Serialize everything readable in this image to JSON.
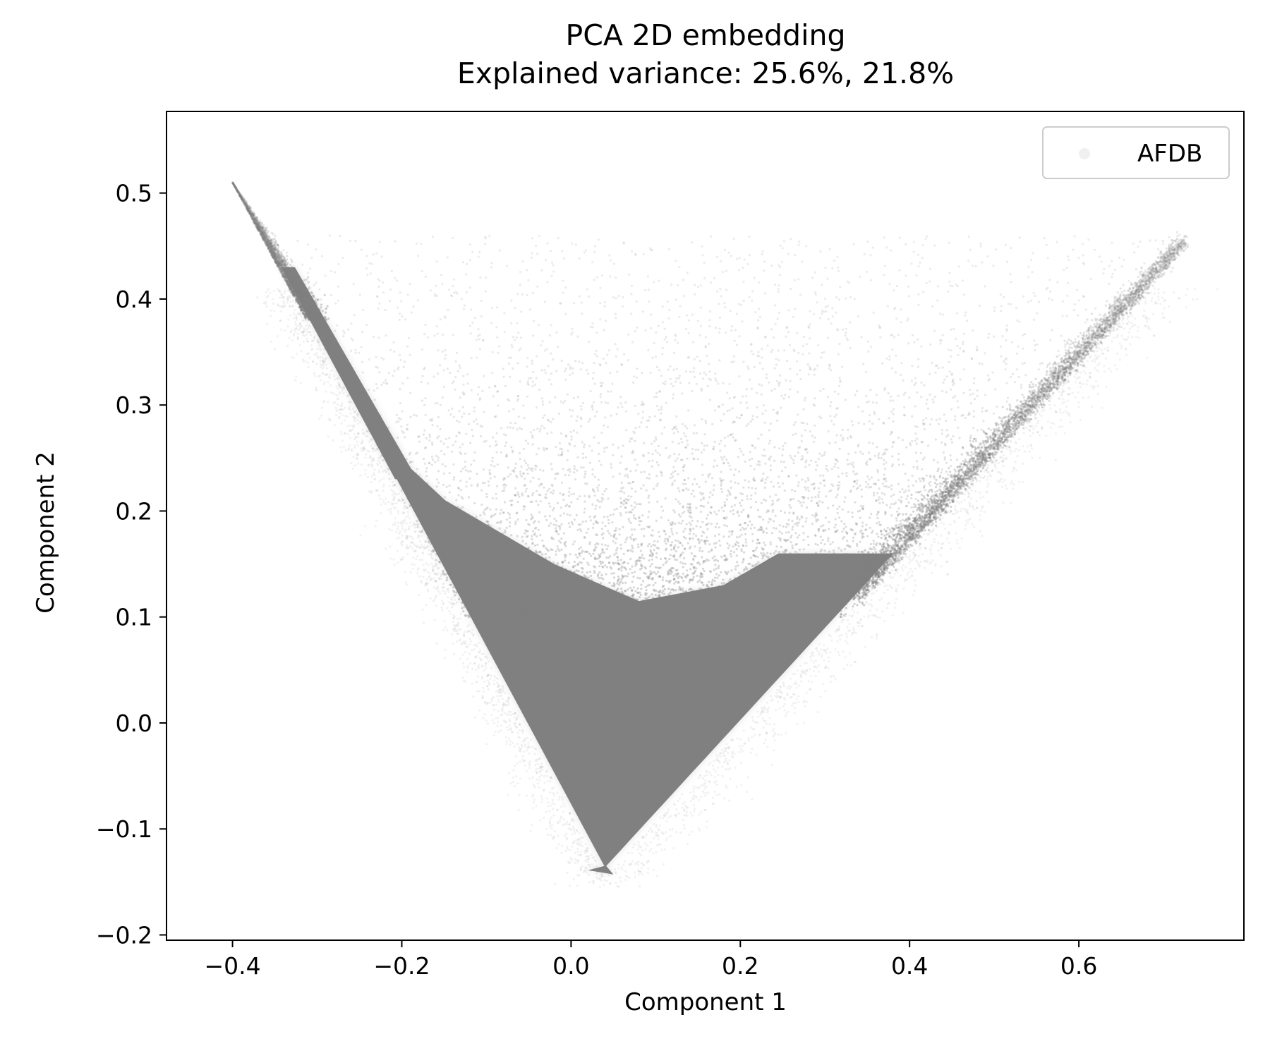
{
  "chart_data": {
    "type": "scatter",
    "title": "PCA 2D embedding",
    "subtitle": "Explained variance: 25.6%, 21.8%",
    "xlabel": "Component 1",
    "ylabel": "Component 2",
    "xlim": [
      -0.478,
      0.795
    ],
    "ylim": [
      -0.205,
      0.577
    ],
    "x_ticks": [
      -0.4,
      -0.2,
      0.0,
      0.2,
      0.4,
      0.6
    ],
    "x_tick_labels": [
      "−0.4",
      "−0.2",
      "0.0",
      "0.2",
      "0.4",
      "0.6"
    ],
    "y_ticks": [
      -0.2,
      -0.1,
      0.0,
      0.1,
      0.2,
      0.3,
      0.4,
      0.5
    ],
    "y_tick_labels": [
      "−0.2",
      "−0.1",
      "0.0",
      "0.1",
      "0.2",
      "0.3",
      "0.4",
      "0.5"
    ],
    "grid": false,
    "legend_position": "upper right",
    "series": [
      {
        "name": "AFDB",
        "color": "#808080",
        "description_of_extent": {
          "vertex_left": [
            -0.4,
            0.51
          ],
          "vertex_right": [
            0.73,
            0.455
          ],
          "bottom": [
            0.04,
            -0.145
          ],
          "dense_core_top_y": 0.11
        }
      }
    ]
  }
}
